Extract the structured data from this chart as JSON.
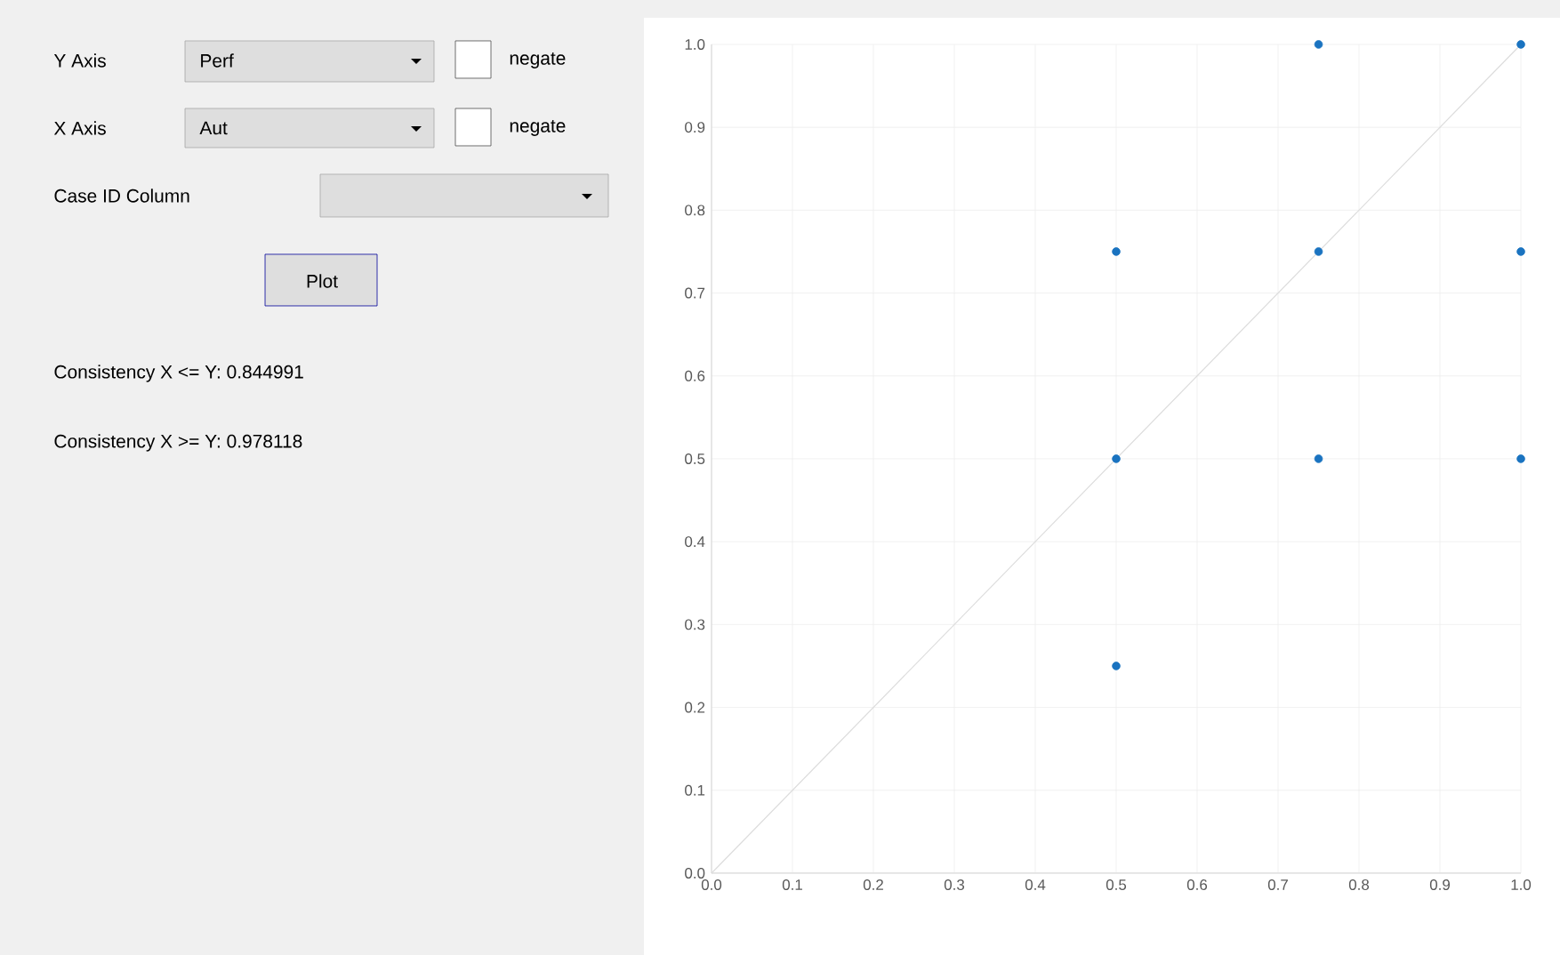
{
  "chart_data": {
    "type": "scatter",
    "xlim": [
      0,
      1
    ],
    "ylim": [
      0,
      1
    ],
    "xticks": [
      {
        "value": 0,
        "label": "0.0"
      },
      0.1,
      0.2,
      0.3,
      0.4,
      0.5,
      0.6,
      0.7,
      0.8,
      0.9,
      {
        "value": 1,
        "label": "1.0"
      }
    ],
    "yticks": [
      {
        "value": 0,
        "label": "0.0"
      },
      0.1,
      0.2,
      0.3,
      0.4,
      0.5,
      0.6,
      0.7,
      0.8,
      0.9,
      {
        "value": 1,
        "label": "1.0"
      }
    ],
    "grid": true,
    "series": [
      {
        "type": "line",
        "color": "#dcdcdc",
        "marker": "none",
        "x": [
          0,
          1
        ],
        "values": [
          0,
          1
        ]
      },
      {
        "color": "#1a73c0",
        "marker": "circle",
        "x": [
          0.5,
          0.5,
          0.5,
          0.75,
          0.75,
          0.75,
          1,
          1,
          1
        ],
        "values": [
          0.25,
          0.5,
          0.75,
          0.5,
          0.75,
          1,
          0.5,
          0.75,
          1
        ]
      }
    ],
    "annotations": [
      "Y Axis",
      "Perf",
      "negate",
      "X Axis",
      "Aut",
      "negate",
      "Case ID Column",
      "Plot",
      "Consistency X <= Y: 0.844991",
      "Consistency X >= Y: 0.978118"
    ]
  }
}
